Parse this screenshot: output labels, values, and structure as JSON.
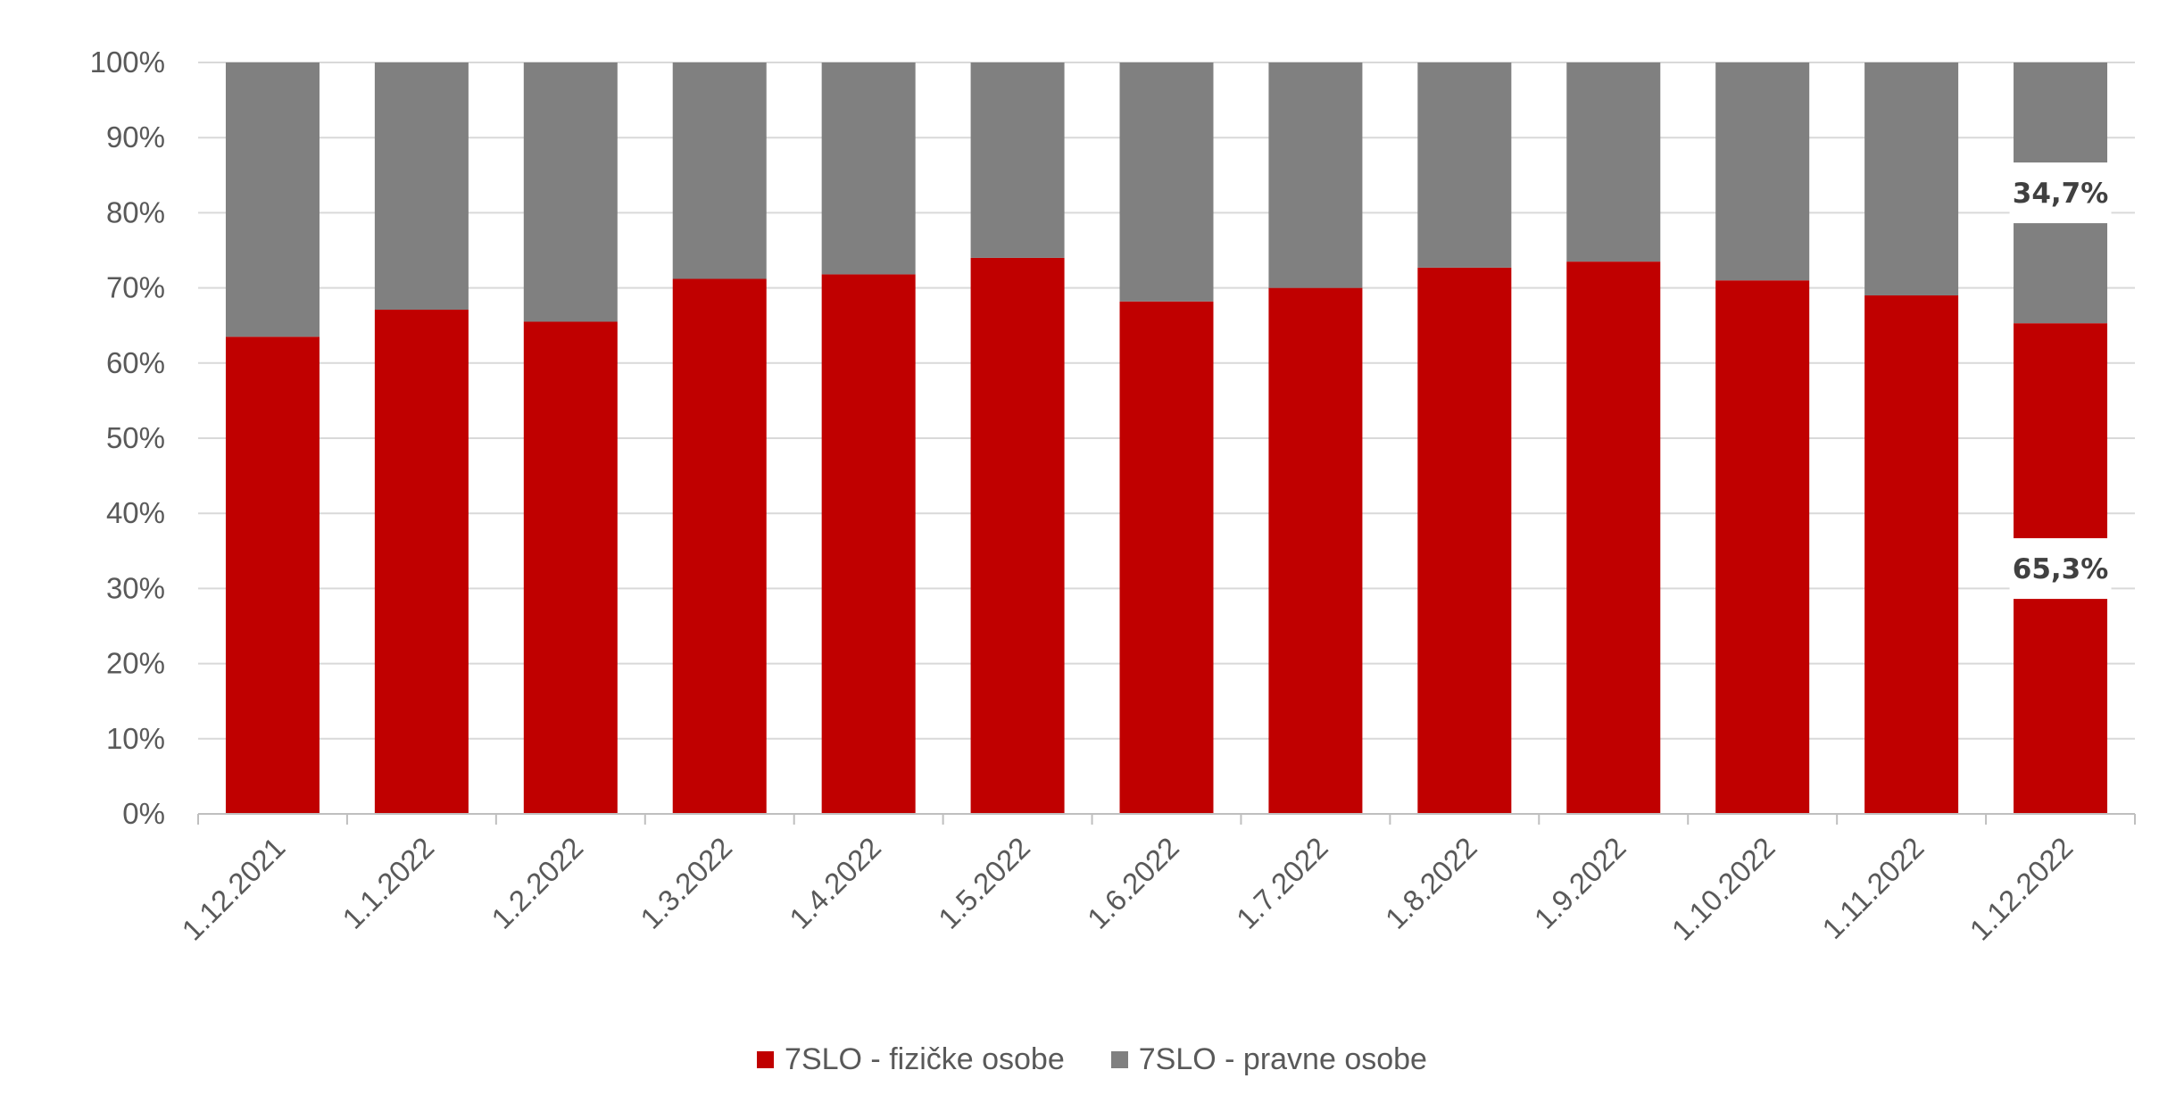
{
  "chart_data": {
    "type": "bar",
    "stacked": true,
    "percent_stacked": true,
    "categories": [
      "1.12.2021",
      "1.1.2022",
      "1.2.2022",
      "1.3.2022",
      "1.4.2022",
      "1.5.2022",
      "1.6.2022",
      "1.7.2022",
      "1.8.2022",
      "1.9.2022",
      "1.10.2022",
      "1.11.2022",
      "1.12.2022"
    ],
    "series": [
      {
        "name": "7SLO - fizičke osobe",
        "color": "#C00000",
        "values": [
          63.5,
          67.1,
          65.5,
          71.2,
          71.8,
          74.0,
          68.2,
          70.0,
          72.7,
          73.5,
          71.0,
          69.0,
          65.3
        ]
      },
      {
        "name": "7SLO - pravne osobe",
        "color": "#808080",
        "values": [
          36.5,
          32.9,
          34.5,
          28.8,
          28.2,
          26.0,
          31.8,
          30.0,
          27.3,
          26.5,
          29.0,
          31.0,
          34.7
        ]
      }
    ],
    "yticks": [
      "0%",
      "10%",
      "20%",
      "30%",
      "40%",
      "50%",
      "60%",
      "70%",
      "80%",
      "90%",
      "100%"
    ],
    "ylim": [
      0,
      100
    ],
    "grid": true,
    "legend_position": "bottom",
    "data_labels": [
      {
        "category": "1.12.2022",
        "series": "7SLO - pravne osobe",
        "text": "34,7%"
      },
      {
        "category": "1.12.2022",
        "series": "7SLO - fizičke osobe",
        "text": "65,3%"
      }
    ]
  }
}
